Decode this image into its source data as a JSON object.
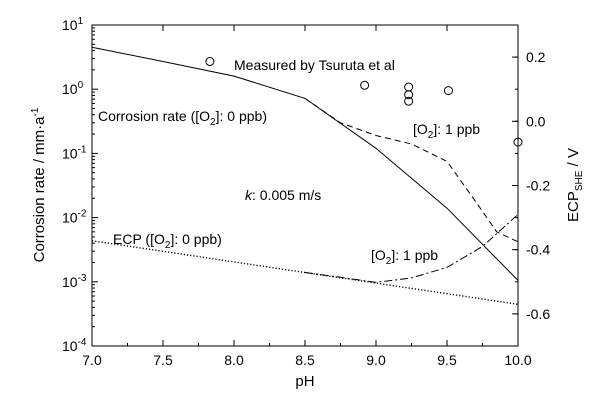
{
  "chart_data": {
    "type": "line",
    "xlabel": "pH",
    "ylabel_left": "Corrosion rate / mm·a",
    "ylabel_left_sup": "-1",
    "ylabel_right": "ECP",
    "ylabel_right_sub": "SHE",
    "ylabel_right_unit": " / V",
    "xlim": [
      7.0,
      10.0
    ],
    "ylim_left_log10": [
      -4,
      1
    ],
    "ylim_right": [
      -0.7,
      0.3
    ],
    "x_ticks": [
      "7.0",
      "7.5",
      "8.0",
      "8.5",
      "9.0",
      "9.5",
      "10.0"
    ],
    "y_left_ticks": [
      {
        "base": "10",
        "exp": "1"
      },
      {
        "base": "10",
        "exp": "0"
      },
      {
        "base": "10",
        "exp": "-1"
      },
      {
        "base": "10",
        "exp": "-2"
      },
      {
        "base": "10",
        "exp": "-3"
      },
      {
        "base": "10",
        "exp": "-4"
      }
    ],
    "y_right_ticks": [
      "0.2",
      "0.0",
      "-0.2",
      "-0.4",
      "-0.6"
    ],
    "series": [
      {
        "name": "Corrosion rate ([O2]: 0 ppb)",
        "axis": "left",
        "style": "solid",
        "x": [
          7.0,
          7.5,
          8.0,
          8.5,
          9.0,
          9.5,
          10.0
        ],
        "y": [
          4.5,
          2.7,
          1.6,
          0.72,
          0.12,
          0.014,
          0.00105
        ]
      },
      {
        "name": "Corrosion rate ([O2]: 1 ppb)",
        "axis": "left",
        "style": "dashed",
        "x": [
          8.5,
          8.75,
          9.0,
          9.25,
          9.5,
          9.7,
          9.85,
          10.0
        ],
        "y": [
          0.72,
          0.3,
          0.19,
          0.14,
          0.075,
          0.018,
          0.006,
          0.0042
        ]
      },
      {
        "name": "ECP ([O2]: 0 ppb)",
        "axis": "right",
        "style": "dotted",
        "x": [
          7.0,
          7.5,
          8.0,
          8.5,
          9.0,
          9.5,
          10.0
        ],
        "y": [
          -0.372,
          -0.405,
          -0.438,
          -0.471,
          -0.504,
          -0.537,
          -0.57
        ]
      },
      {
        "name": "ECP ([O2]: 1 ppb)",
        "axis": "right",
        "style": "dashdot",
        "x": [
          8.5,
          8.75,
          9.0,
          9.25,
          9.5,
          9.75,
          10.0
        ],
        "y": [
          -0.471,
          -0.486,
          -0.502,
          -0.488,
          -0.455,
          -0.39,
          -0.29
        ]
      },
      {
        "name": "Measured by Tsuruta et al",
        "axis": "left",
        "style": "marker",
        "x": [
          7.83,
          8.92,
          9.23,
          9.23,
          9.23,
          9.51,
          10.0
        ],
        "y": [
          2.7,
          1.15,
          1.08,
          0.82,
          0.65,
          0.95,
          0.15
        ]
      }
    ],
    "annotations": {
      "measured": "Measured by Tsuruta et al",
      "cr0_prefix": "Corrosion rate ([O",
      "cr0_sub": "2",
      "cr0_suffix": "]: 0 ppb)",
      "cr1_prefix": "[O",
      "cr1_sub": "2",
      "cr1_suffix": "]: 1 ppb",
      "k_italic": "k",
      "k_rest": ": 0.005 m/s",
      "ecp0_prefix": "ECP ([O",
      "ecp0_sub": "2",
      "ecp0_suffix": "]: 0 ppb)",
      "ecp1_prefix": "[O",
      "ecp1_sub": "2",
      "ecp1_suffix": "]: 1 ppb"
    },
    "grid": false
  }
}
